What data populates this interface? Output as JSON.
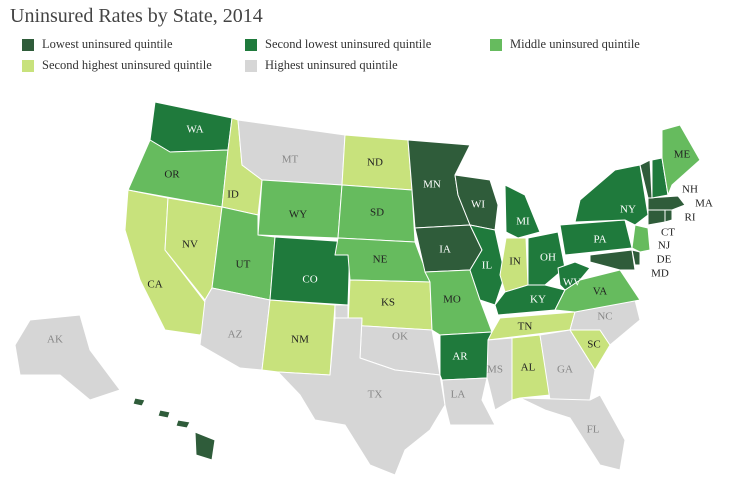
{
  "title": "Uninsured Rates by State, 2014",
  "legend": [
    {
      "label": "Lowest uninsured quintile",
      "color": "#2f5c3a"
    },
    {
      "label": "Second lowest uninsured quintile",
      "color": "#1f7a3c"
    },
    {
      "label": "Middle uninsured quintile",
      "color": "#66bb5e"
    },
    {
      "label": "Second highest uninsured quintile",
      "color": "#c8e27c"
    },
    {
      "label": "Highest uninsured quintile",
      "color": "#d6d6d6"
    }
  ],
  "states": [
    {
      "abbr": "WA",
      "quintile": 1
    },
    {
      "abbr": "OR",
      "quintile": 2
    },
    {
      "abbr": "CA",
      "quintile": 3
    },
    {
      "abbr": "NV",
      "quintile": 3
    },
    {
      "abbr": "ID",
      "quintile": 3
    },
    {
      "abbr": "MT",
      "quintile": 4
    },
    {
      "abbr": "WY",
      "quintile": 2
    },
    {
      "abbr": "UT",
      "quintile": 2
    },
    {
      "abbr": "CO",
      "quintile": 1
    },
    {
      "abbr": "AZ",
      "quintile": 4
    },
    {
      "abbr": "NM",
      "quintile": 3
    },
    {
      "abbr": "ND",
      "quintile": 3
    },
    {
      "abbr": "SD",
      "quintile": 2
    },
    {
      "abbr": "NE",
      "quintile": 2
    },
    {
      "abbr": "KS",
      "quintile": 3
    },
    {
      "abbr": "OK",
      "quintile": 4
    },
    {
      "abbr": "TX",
      "quintile": 4
    },
    {
      "abbr": "MN",
      "quintile": 0
    },
    {
      "abbr": "IA",
      "quintile": 0
    },
    {
      "abbr": "MO",
      "quintile": 2
    },
    {
      "abbr": "AR",
      "quintile": 1
    },
    {
      "abbr": "LA",
      "quintile": 4
    },
    {
      "abbr": "WI",
      "quintile": 0
    },
    {
      "abbr": "IL",
      "quintile": 1
    },
    {
      "abbr": "MI",
      "quintile": 1
    },
    {
      "abbr": "IN",
      "quintile": 3
    },
    {
      "abbr": "OH",
      "quintile": 1
    },
    {
      "abbr": "KY",
      "quintile": 1
    },
    {
      "abbr": "TN",
      "quintile": 3
    },
    {
      "abbr": "MS",
      "quintile": 4
    },
    {
      "abbr": "AL",
      "quintile": 3
    },
    {
      "abbr": "GA",
      "quintile": 4
    },
    {
      "abbr": "FL",
      "quintile": 4
    },
    {
      "abbr": "SC",
      "quintile": 3
    },
    {
      "abbr": "NC",
      "quintile": 4
    },
    {
      "abbr": "VA",
      "quintile": 2
    },
    {
      "abbr": "WV",
      "quintile": 1
    },
    {
      "abbr": "PA",
      "quintile": 1
    },
    {
      "abbr": "NY",
      "quintile": 1
    },
    {
      "abbr": "MD",
      "quintile": 0
    },
    {
      "abbr": "DE",
      "quintile": 0
    },
    {
      "abbr": "NJ",
      "quintile": 2
    },
    {
      "abbr": "CT",
      "quintile": 0
    },
    {
      "abbr": "RI",
      "quintile": 0
    },
    {
      "abbr": "MA",
      "quintile": 0
    },
    {
      "abbr": "VT",
      "quintile": 0
    },
    {
      "abbr": "NH",
      "quintile": 1
    },
    {
      "abbr": "ME",
      "quintile": 2
    },
    {
      "abbr": "AK",
      "quintile": 4
    },
    {
      "abbr": "HI",
      "quintile": 0
    }
  ]
}
